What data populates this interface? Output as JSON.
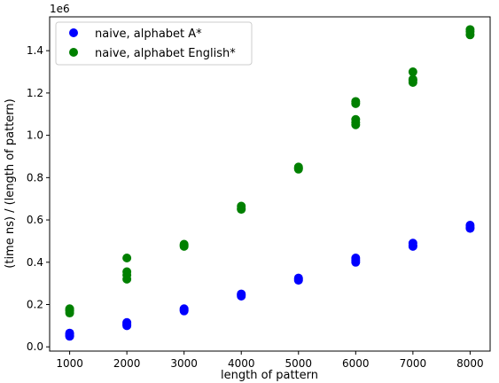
{
  "chart_data": {
    "type": "scatter",
    "title": "",
    "xlabel": "length of pattern",
    "ylabel": "(time ns) / (length of pattern)",
    "y_offset_label": "1e6",
    "xlim": [
      650,
      8350
    ],
    "ylim": [
      -0.02,
      1.56
    ],
    "x_ticks": [
      1000,
      2000,
      3000,
      4000,
      5000,
      6000,
      7000,
      8000
    ],
    "x_tick_labels": [
      "1000",
      "2000",
      "3000",
      "4000",
      "5000",
      "6000",
      "7000",
      "8000"
    ],
    "y_ticks": [
      0.0,
      0.2,
      0.4,
      0.6,
      0.8,
      1.0,
      1.2,
      1.4
    ],
    "y_tick_labels": [
      "0.0",
      "0.2",
      "0.4",
      "0.6",
      "0.8",
      "1.0",
      "1.2",
      "1.4"
    ],
    "grid": false,
    "legend_position": "top-left",
    "series": [
      {
        "name": "naive, alphabet A*",
        "color": "#0000ff",
        "points": [
          [
            1000,
            0.05
          ],
          [
            1000,
            0.055
          ],
          [
            1000,
            0.06
          ],
          [
            1000,
            0.065
          ],
          [
            2000,
            0.1
          ],
          [
            2000,
            0.105
          ],
          [
            2000,
            0.11
          ],
          [
            2000,
            0.115
          ],
          [
            3000,
            0.17
          ],
          [
            3000,
            0.175
          ],
          [
            3000,
            0.18
          ],
          [
            4000,
            0.24
          ],
          [
            4000,
            0.245
          ],
          [
            4000,
            0.25
          ],
          [
            5000,
            0.315
          ],
          [
            5000,
            0.32
          ],
          [
            5000,
            0.325
          ],
          [
            6000,
            0.4
          ],
          [
            6000,
            0.41
          ],
          [
            6000,
            0.42
          ],
          [
            7000,
            0.475
          ],
          [
            7000,
            0.48
          ],
          [
            7000,
            0.49
          ],
          [
            8000,
            0.56
          ],
          [
            8000,
            0.565
          ],
          [
            8000,
            0.575
          ]
        ]
      },
      {
        "name": "naive, alphabet English*",
        "color": "#008000",
        "points": [
          [
            1000,
            0.16
          ],
          [
            1000,
            0.17
          ],
          [
            1000,
            0.175
          ],
          [
            1000,
            0.18
          ],
          [
            2000,
            0.32
          ],
          [
            2000,
            0.34
          ],
          [
            2000,
            0.355
          ],
          [
            2000,
            0.42
          ],
          [
            3000,
            0.475
          ],
          [
            3000,
            0.48
          ],
          [
            3000,
            0.485
          ],
          [
            4000,
            0.65
          ],
          [
            4000,
            0.655
          ],
          [
            4000,
            0.665
          ],
          [
            5000,
            0.84
          ],
          [
            5000,
            0.845
          ],
          [
            5000,
            0.85
          ],
          [
            6000,
            1.05
          ],
          [
            6000,
            1.06
          ],
          [
            6000,
            1.075
          ],
          [
            6000,
            1.15
          ],
          [
            6000,
            1.16
          ],
          [
            7000,
            1.25
          ],
          [
            7000,
            1.26
          ],
          [
            7000,
            1.265
          ],
          [
            7000,
            1.3
          ],
          [
            8000,
            1.475
          ],
          [
            8000,
            1.49
          ],
          [
            8000,
            1.5
          ]
        ]
      }
    ]
  }
}
